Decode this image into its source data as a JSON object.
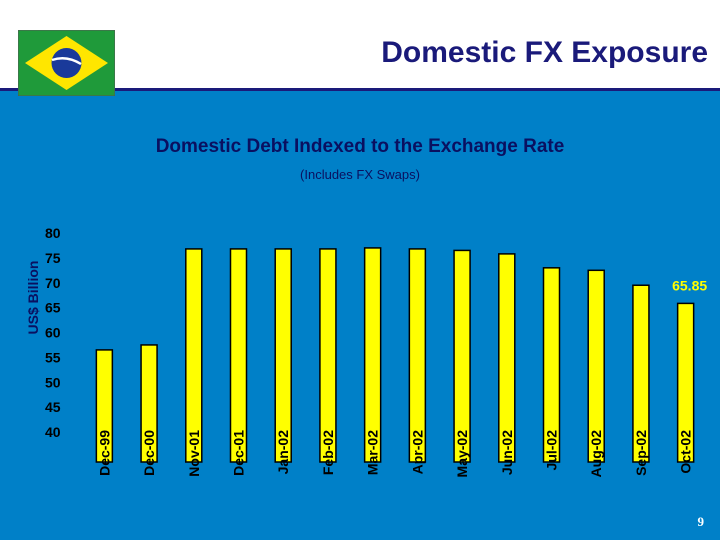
{
  "slide": {
    "title": "Domestic FX Exposure",
    "page_number": "9"
  },
  "colors": {
    "background": "#0080c8",
    "bar_fill": "#ffff00",
    "bar_stroke": "#000000",
    "title_color": "#1a1a7a"
  },
  "flag": {
    "icon": "brazil-flag-icon"
  },
  "chart_data": {
    "type": "bar",
    "title": "Domestic Debt Indexed to the Exchange Rate",
    "subtitle": "(Includes FX Swaps)",
    "xlabel": "",
    "ylabel": "US$ Billion",
    "ylim": [
      40,
      80
    ],
    "yticks": [
      80,
      75,
      70,
      65,
      60,
      55,
      50,
      45,
      40
    ],
    "categories": [
      "Dec-99",
      "Dec-00",
      "Nov-01",
      "Dec-01",
      "Jan-02",
      "Feb-02",
      "Mar-02",
      "Apr-02",
      "May-02",
      "Jun-02",
      "Jul-02",
      "Aug-02",
      "Sep-02",
      "Oct-02"
    ],
    "values": [
      56.5,
      57.5,
      76.8,
      76.8,
      76.8,
      76.8,
      77.0,
      76.8,
      76.5,
      75.8,
      73.0,
      72.5,
      69.5,
      65.85
    ],
    "data_labels": [
      {
        "index": 13,
        "text": "65.85"
      }
    ],
    "grid": false,
    "legend": "none"
  }
}
